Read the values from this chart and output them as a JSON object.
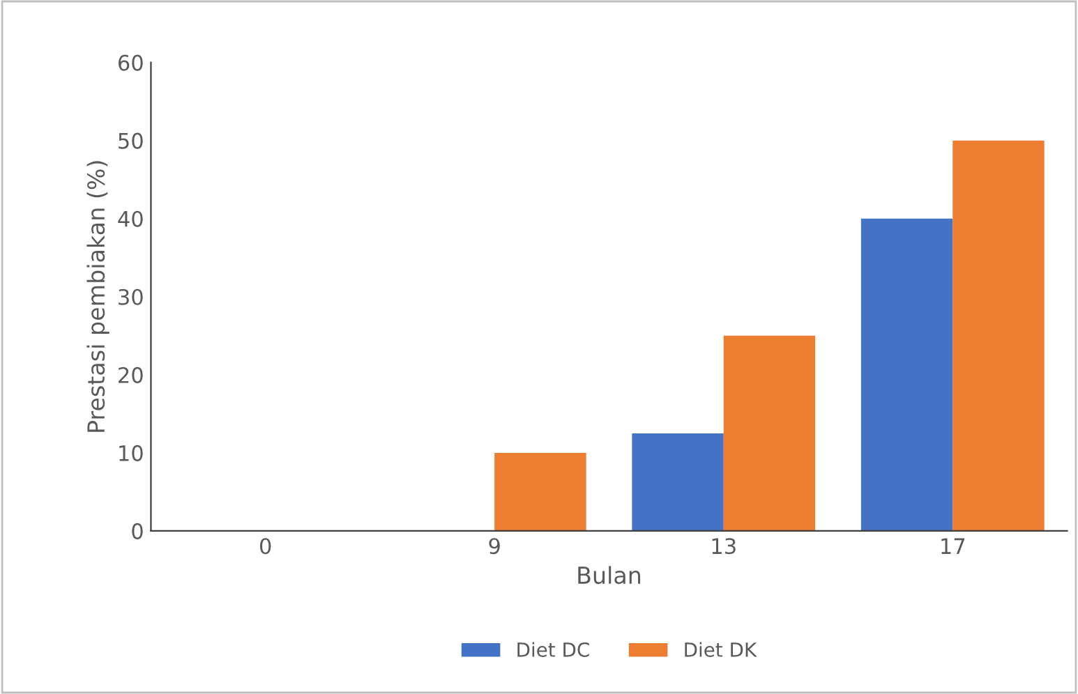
{
  "chart_data": {
    "type": "bar",
    "xlabel": "Bulan",
    "ylabel": "Prestasi pembiakan (%)",
    "categories": [
      "0",
      "9",
      "13",
      "17"
    ],
    "series": [
      {
        "name": "Diet DC",
        "color": "#4472c4",
        "values": [
          0,
          0,
          12.5,
          40
        ]
      },
      {
        "name": "Diet DK",
        "color": "#ed7d31",
        "values": [
          0,
          10,
          25,
          50
        ]
      }
    ],
    "ylim": [
      0,
      60
    ],
    "yticks": [
      0,
      10,
      20,
      30,
      40,
      50,
      60
    ],
    "grid": false,
    "legend": "bottom"
  }
}
